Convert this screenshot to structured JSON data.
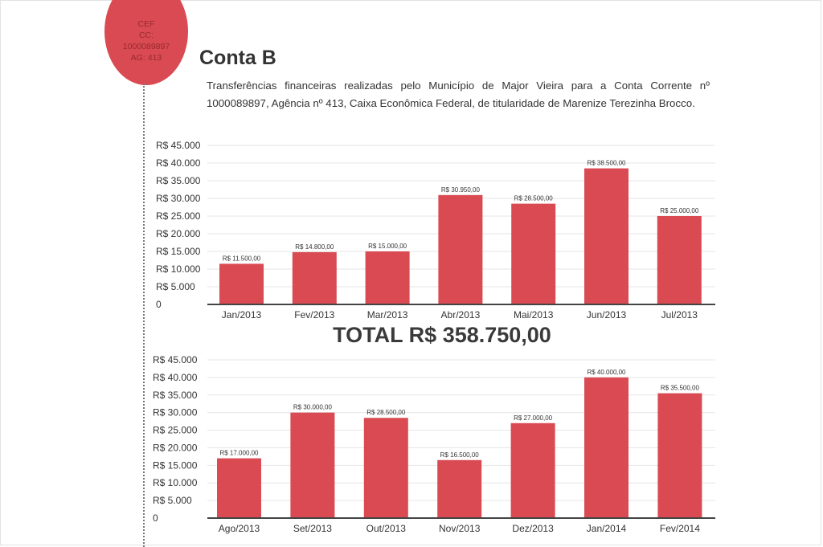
{
  "badge": {
    "line1": "CEF",
    "line2": "CC:",
    "line3": "1000089897",
    "line4": "AG: 413"
  },
  "header": {
    "title": "Conta B",
    "description": "Transferências financeiras realizadas pelo Município de Major Vieira para a Conta Corrente nº 1000089897, Agência nº 413, Caixa Econômica Federal, de titularidade de Marenize Terezinha Brocco."
  },
  "total": "TOTAL R$ 358.750,00",
  "colors": {
    "bar": "#d94a52",
    "grid": "#e6e6e6",
    "axis": "#444444"
  },
  "chart_data": [
    {
      "type": "bar",
      "title": "",
      "xlabel": "",
      "ylabel": "",
      "ylim": [
        0,
        45000
      ],
      "grid": true,
      "yticks": [
        {
          "value": 0,
          "label": "0"
        },
        {
          "value": 5000,
          "label": "R$ 5.000"
        },
        {
          "value": 10000,
          "label": "R$ 10.000"
        },
        {
          "value": 15000,
          "label": "R$ 15.000"
        },
        {
          "value": 20000,
          "label": "R$ 20.000"
        },
        {
          "value": 25000,
          "label": "R$ 25.000"
        },
        {
          "value": 30000,
          "label": "R$ 30.000"
        },
        {
          "value": 35000,
          "label": "R$ 35.000"
        },
        {
          "value": 40000,
          "label": "R$ 40.000"
        },
        {
          "value": 45000,
          "label": "R$ 45.000"
        }
      ],
      "categories": [
        "Jan/2013",
        "Fev/2013",
        "Mar/2013",
        "Abr/2013",
        "Mai/2013",
        "Jun/2013",
        "Jul/2013"
      ],
      "values": [
        11500,
        14800,
        15000,
        30950,
        28500,
        38500,
        25000
      ],
      "data_labels": [
        "R$ 11.500,00",
        "R$ 14.800,00",
        "R$ 15.000,00",
        "R$ 30.950,00",
        "R$ 28.500,00",
        "R$ 38.500,00",
        "R$ 25.000,00"
      ]
    },
    {
      "type": "bar",
      "title": "",
      "xlabel": "",
      "ylabel": "",
      "ylim": [
        0,
        45000
      ],
      "grid": true,
      "yticks": [
        {
          "value": 0,
          "label": "0"
        },
        {
          "value": 5000,
          "label": "R$ 5.000"
        },
        {
          "value": 10000,
          "label": "R$ 10.000"
        },
        {
          "value": 15000,
          "label": "R$ 15.000"
        },
        {
          "value": 20000,
          "label": "R$ 20.000"
        },
        {
          "value": 25000,
          "label": "R$ 25.000"
        },
        {
          "value": 30000,
          "label": "R$ 30.000"
        },
        {
          "value": 35000,
          "label": "R$ 35.000"
        },
        {
          "value": 40000,
          "label": "R$ 40.000"
        },
        {
          "value": 45000,
          "label": "R$ 45.000"
        }
      ],
      "categories": [
        "Ago/2013",
        "Set/2013",
        "Out/2013",
        "Nov/2013",
        "Dez/2013",
        "Jan/2014",
        "Fev/2014"
      ],
      "values": [
        17000,
        30000,
        28500,
        16500,
        27000,
        40000,
        35500
      ],
      "data_labels": [
        "R$ 17.000,00",
        "R$ 30.000,00",
        "R$ 28.500,00",
        "R$ 16.500,00",
        "R$ 27.000,00",
        "R$ 40.000,00",
        "R$ 35.500,00"
      ]
    }
  ]
}
